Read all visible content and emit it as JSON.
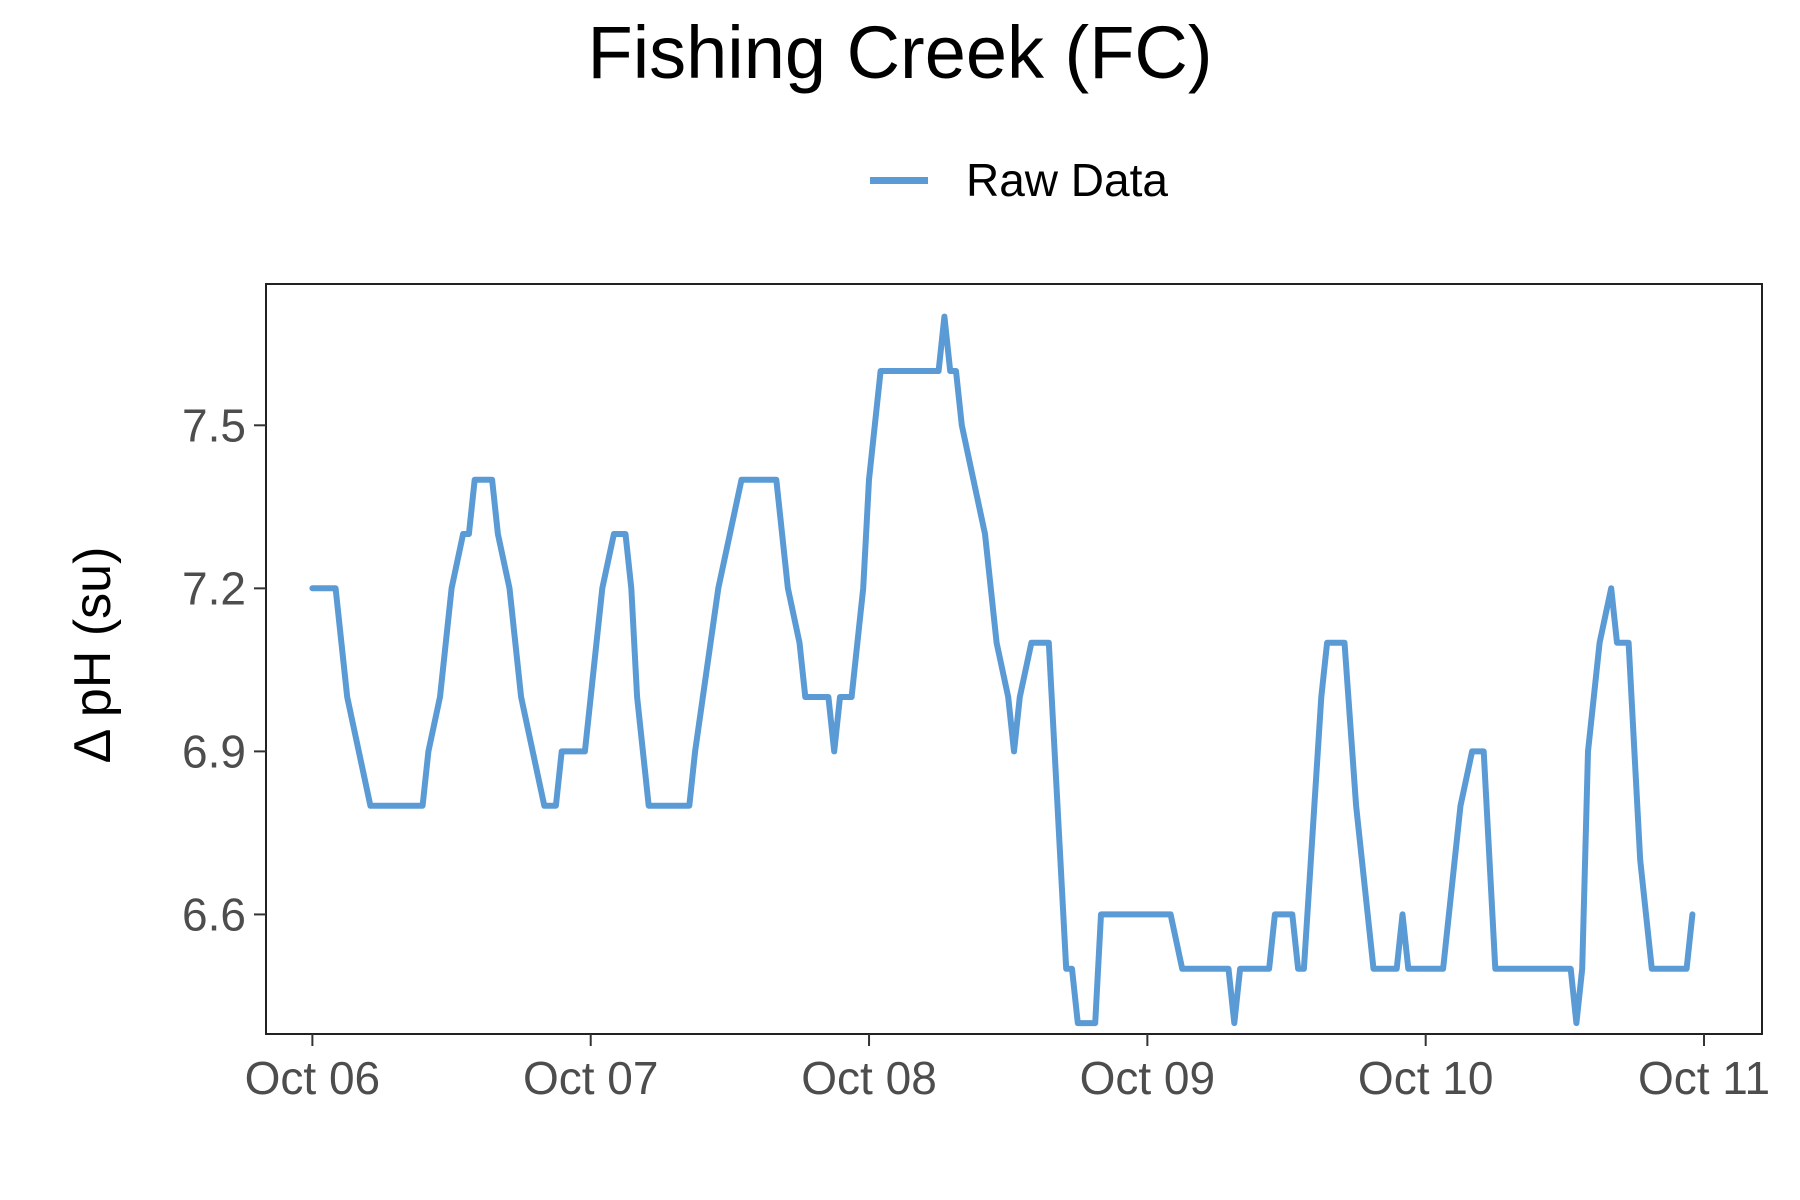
{
  "chart_data": {
    "type": "line",
    "title": "Fishing Creek (FC)",
    "xlabel": "",
    "ylabel": "Δ pH (su)",
    "x_ticks": [
      "Oct 06",
      "Oct 07",
      "Oct 08",
      "Oct 09",
      "Oct 10",
      "Oct 11"
    ],
    "y_ticks": [
      "6.6",
      "6.9",
      "7.2",
      "7.5"
    ],
    "xlim": [
      "2023-10-05T20:00",
      "2023-10-11T05:00"
    ],
    "ylim": [
      6.38,
      7.76
    ],
    "grid": false,
    "legend": "top-center",
    "series": [
      {
        "name": "Raw Data",
        "color": "#5b9bd5",
        "points": [
          [
            "2023-10-06T00:00",
            7.2
          ],
          [
            "2023-10-06T02:00",
            7.2
          ],
          [
            "2023-10-06T02:30",
            7.1
          ],
          [
            "2023-10-06T03:00",
            7.0
          ],
          [
            "2023-10-06T04:00",
            6.9
          ],
          [
            "2023-10-06T05:00",
            6.8
          ],
          [
            "2023-10-06T09:30",
            6.8
          ],
          [
            "2023-10-06T10:00",
            6.9
          ],
          [
            "2023-10-06T11:00",
            7.0
          ],
          [
            "2023-10-06T11:30",
            7.1
          ],
          [
            "2023-10-06T12:00",
            7.2
          ],
          [
            "2023-10-06T13:00",
            7.3
          ],
          [
            "2023-10-06T13:30",
            7.3
          ],
          [
            "2023-10-06T14:00",
            7.4
          ],
          [
            "2023-10-06T15:30",
            7.4
          ],
          [
            "2023-10-06T16:00",
            7.3
          ],
          [
            "2023-10-06T17:00",
            7.2
          ],
          [
            "2023-10-06T18:00",
            7.0
          ],
          [
            "2023-10-06T19:00",
            6.9
          ],
          [
            "2023-10-06T20:00",
            6.8
          ],
          [
            "2023-10-06T21:00",
            6.8
          ],
          [
            "2023-10-06T21:30",
            6.9
          ],
          [
            "2023-10-06T23:30",
            6.9
          ],
          [
            "2023-10-07T00:00",
            7.0
          ],
          [
            "2023-10-07T00:30",
            7.1
          ],
          [
            "2023-10-07T01:00",
            7.2
          ],
          [
            "2023-10-07T02:00",
            7.3
          ],
          [
            "2023-10-07T03:00",
            7.3
          ],
          [
            "2023-10-07T03:30",
            7.2
          ],
          [
            "2023-10-07T04:00",
            7.0
          ],
          [
            "2023-10-07T05:00",
            6.8
          ],
          [
            "2023-10-07T08:30",
            6.8
          ],
          [
            "2023-10-07T09:00",
            6.9
          ],
          [
            "2023-10-07T11:00",
            7.2
          ],
          [
            "2023-10-07T12:00",
            7.3
          ],
          [
            "2023-10-07T13:00",
            7.4
          ],
          [
            "2023-10-07T16:00",
            7.4
          ],
          [
            "2023-10-07T17:00",
            7.2
          ],
          [
            "2023-10-07T18:00",
            7.1
          ],
          [
            "2023-10-07T18:30",
            7.0
          ],
          [
            "2023-10-07T20:30",
            7.0
          ],
          [
            "2023-10-07T21:00",
            6.9
          ],
          [
            "2023-10-07T21:30",
            7.0
          ],
          [
            "2023-10-07T22:30",
            7.0
          ],
          [
            "2023-10-07T23:30",
            7.2
          ],
          [
            "2023-10-08T00:00",
            7.4
          ],
          [
            "2023-10-08T00:30",
            7.5
          ],
          [
            "2023-10-08T01:00",
            7.6
          ],
          [
            "2023-10-08T06:00",
            7.6
          ],
          [
            "2023-10-08T06:30",
            7.7
          ],
          [
            "2023-10-08T07:00",
            7.6
          ],
          [
            "2023-10-08T07:30",
            7.6
          ],
          [
            "2023-10-08T08:00",
            7.5
          ],
          [
            "2023-10-08T09:00",
            7.4
          ],
          [
            "2023-10-08T10:00",
            7.3
          ],
          [
            "2023-10-08T11:00",
            7.1
          ],
          [
            "2023-10-08T12:00",
            7.0
          ],
          [
            "2023-10-08T12:30",
            6.9
          ],
          [
            "2023-10-08T13:00",
            7.0
          ],
          [
            "2023-10-08T14:00",
            7.1
          ],
          [
            "2023-10-08T15:30",
            7.1
          ],
          [
            "2023-10-08T16:00",
            6.9
          ],
          [
            "2023-10-08T17:00",
            6.5
          ],
          [
            "2023-10-08T17:30",
            6.5
          ],
          [
            "2023-10-08T18:00",
            6.4
          ],
          [
            "2023-10-08T19:30",
            6.4
          ],
          [
            "2023-10-08T20:00",
            6.6
          ],
          [
            "2023-10-09T02:00",
            6.6
          ],
          [
            "2023-10-09T03:00",
            6.5
          ],
          [
            "2023-10-09T07:00",
            6.5
          ],
          [
            "2023-10-09T07:30",
            6.4
          ],
          [
            "2023-10-09T08:00",
            6.5
          ],
          [
            "2023-10-09T10:30",
            6.5
          ],
          [
            "2023-10-09T11:00",
            6.6
          ],
          [
            "2023-10-09T12:30",
            6.6
          ],
          [
            "2023-10-09T13:00",
            6.5
          ],
          [
            "2023-10-09T13:30",
            6.5
          ],
          [
            "2023-10-09T15:00",
            7.0
          ],
          [
            "2023-10-09T15:30",
            7.1
          ],
          [
            "2023-10-09T17:00",
            7.1
          ],
          [
            "2023-10-09T18:00",
            6.8
          ],
          [
            "2023-10-09T19:00",
            6.6
          ],
          [
            "2023-10-09T19:30",
            6.5
          ],
          [
            "2023-10-09T21:30",
            6.5
          ],
          [
            "2023-10-09T22:00",
            6.6
          ],
          [
            "2023-10-09T22:30",
            6.5
          ],
          [
            "2023-10-10T01:30",
            6.5
          ],
          [
            "2023-10-10T02:00",
            6.6
          ],
          [
            "2023-10-10T03:00",
            6.8
          ],
          [
            "2023-10-10T04:00",
            6.9
          ],
          [
            "2023-10-10T05:00",
            6.9
          ],
          [
            "2023-10-10T06:00",
            6.5
          ],
          [
            "2023-10-10T12:30",
            6.5
          ],
          [
            "2023-10-10T13:00",
            6.4
          ],
          [
            "2023-10-10T13:30",
            6.5
          ],
          [
            "2023-10-10T14:00",
            6.9
          ],
          [
            "2023-10-10T15:00",
            7.1
          ],
          [
            "2023-10-10T16:00",
            7.2
          ],
          [
            "2023-10-10T16:30",
            7.1
          ],
          [
            "2023-10-10T17:30",
            7.1
          ],
          [
            "2023-10-10T18:30",
            6.7
          ],
          [
            "2023-10-10T19:00",
            6.6
          ],
          [
            "2023-10-10T19:30",
            6.5
          ],
          [
            "2023-10-10T22:30",
            6.5
          ],
          [
            "2023-10-10T23:00",
            6.6
          ]
        ]
      }
    ]
  }
}
